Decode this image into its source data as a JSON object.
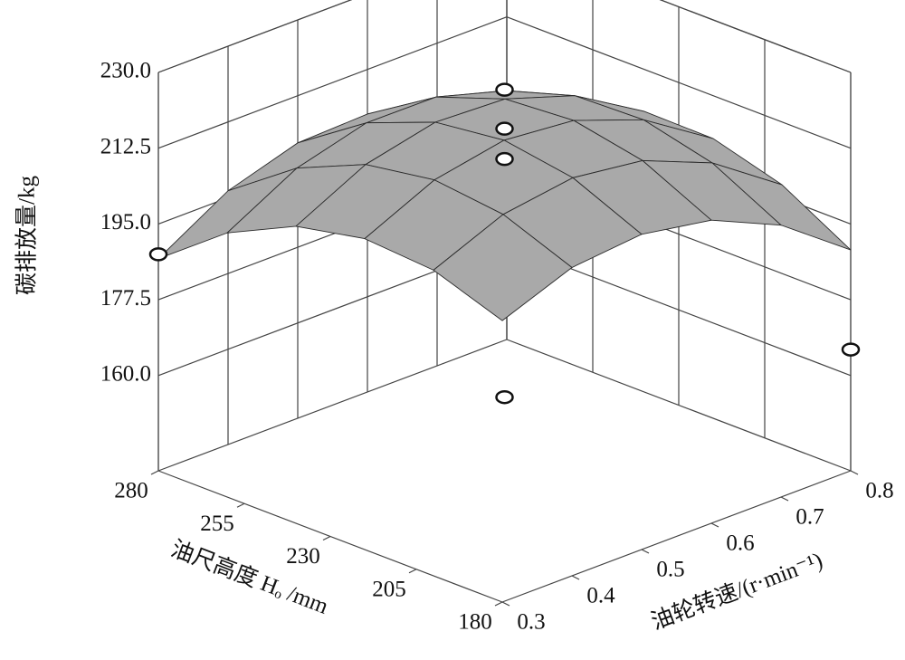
{
  "chart_data": {
    "type": "surface",
    "zlabel": "碳排放量/kg",
    "xlabel": "油尺高度 Hₒ /mm",
    "ylabel": "油轮转速/(r·min⁻¹)",
    "x": [
      180,
      200,
      220,
      240,
      260,
      280
    ],
    "y": [
      0.3,
      0.4,
      0.5,
      0.6,
      0.7,
      0.8
    ],
    "z": [
      [
        203.0,
        209.2,
        210.8,
        208.0,
        200.8,
        189.0
      ],
      [
        208.6,
        215.4,
        217.8,
        215.7,
        209.1,
        198.0
      ],
      [
        209.8,
        217.3,
        220.4,
        218.9,
        213.0,
        202.6
      ],
      [
        206.6,
        214.8,
        218.5,
        217.8,
        212.5,
        202.8
      ],
      [
        199.0,
        207.9,
        212.3,
        212.2,
        207.6,
        198.6
      ],
      [
        187.0,
        196.6,
        201.6,
        202.2,
        198.4,
        190.0
      ]
    ],
    "xlim": [
      180,
      280
    ],
    "ylim": [
      0.3,
      0.8
    ],
    "zlim": [
      138,
      230
    ],
    "xticks": [
      180,
      205,
      230,
      255,
      280
    ],
    "yticks": [
      0.3,
      0.4,
      0.5,
      0.6,
      0.7,
      0.8
    ],
    "zticks": [
      {
        "value": 160,
        "label": "160.0"
      },
      177.5,
      {
        "value": 195,
        "label": "195.0"
      },
      212.5,
      {
        "value": 230,
        "label": "230.0"
      }
    ],
    "points": [
      {
        "x": 280,
        "y": 0.3,
        "z": 188
      },
      {
        "x": 230,
        "y": 0.55,
        "z": 226
      },
      {
        "x": 230,
        "y": 0.55,
        "z": 217
      },
      {
        "x": 230,
        "y": 0.55,
        "z": 210
      },
      {
        "x": 230,
        "y": 0.55,
        "z": 155
      },
      {
        "x": 180,
        "y": 0.8,
        "z": 166
      }
    ],
    "surface_color": "#a9a9a9",
    "grid": true
  }
}
